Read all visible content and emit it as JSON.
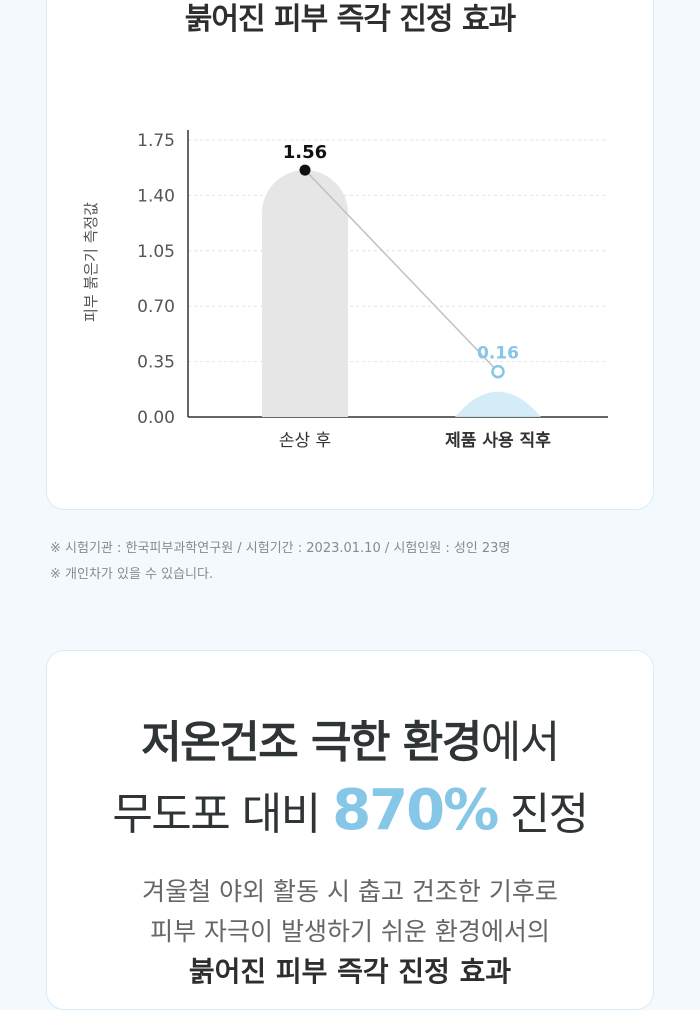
{
  "top_title": "붉어진 피부 즉각 진정 효과",
  "colors": {
    "page_bg": "#f4f9fd",
    "card_border": "#d7ecf8",
    "bar_before": "#e6e6e6",
    "bar_after": "#cfe9f7",
    "accent": "#86c6e6"
  },
  "chart_data": {
    "type": "bar",
    "title": "",
    "ylabel": "피부 붉은기 측정값",
    "xlabel": "",
    "ylim": [
      0,
      1.75
    ],
    "yticks": [
      "1.75",
      "1.40",
      "1.05",
      "0.70",
      "0.35",
      "0.00"
    ],
    "categories": [
      "손상 후",
      "제품 사용 직후"
    ],
    "values": [
      1.56,
      0.16
    ],
    "value_labels": [
      "1.56",
      "0.16"
    ],
    "grid": true,
    "connector_line": true
  },
  "notes": [
    "※ 시험기관 : 한국피부과학연구원 / 시험기간 : 2023.01.10 / 시험인원 : 성인 23명",
    "※ 개인차가 있을 수 있습니다."
  ],
  "headline": {
    "line1_strong": "저온건조 극한 환경",
    "line1_rest": "에서",
    "line2_pre": "무도포 대비 ",
    "line2_accent": "870%",
    "line2_post": " 진정"
  },
  "description": [
    "겨울철 야외 활동 시 춥고 건조한 기후로",
    "피부 자극이 발생하기 쉬운 환경에서의",
    "붉어진 피부 즉각 진정 효과"
  ]
}
